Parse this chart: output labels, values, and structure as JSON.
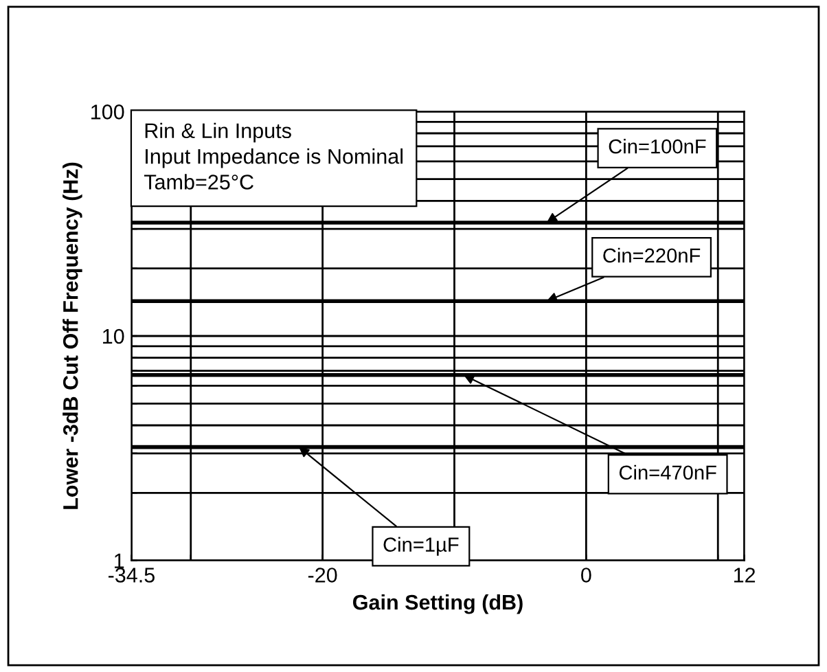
{
  "chart_data": {
    "type": "line",
    "xlabel": "Gain Setting (dB)",
    "ylabel": "Lower -3dB Cut Off Frequency (Hz)",
    "log": "y",
    "xlim": [
      -34.5,
      12
    ],
    "ylim": [
      1,
      100
    ],
    "xticks": [
      -34.5,
      {
        "value": -30,
        "label": null
      },
      -20,
      {
        "value": -10,
        "label": null
      },
      0,
      {
        "value": 10,
        "label": null
      },
      12
    ],
    "yticks": [
      1,
      {
        "value": 2,
        "label": null
      },
      {
        "value": 3,
        "label": null
      },
      {
        "value": 4,
        "label": null
      },
      {
        "value": 5,
        "label": null
      },
      {
        "value": 6,
        "label": null
      },
      {
        "value": 7,
        "label": null
      },
      {
        "value": 8,
        "label": null
      },
      {
        "value": 9,
        "label": null
      },
      10,
      {
        "value": 20,
        "label": null
      },
      {
        "value": 30,
        "label": null
      },
      {
        "value": 40,
        "label": null
      },
      {
        "value": 50,
        "label": null
      },
      {
        "value": 60,
        "label": null
      },
      {
        "value": 70,
        "label": null
      },
      {
        "value": 80,
        "label": null
      },
      {
        "value": 90,
        "label": null
      },
      100
    ],
    "grid": true,
    "line_style": "solid",
    "marker": "none",
    "x": [
      -34.5,
      12
    ],
    "series": [
      {
        "color": "#000000",
        "values": [
          32,
          32
        ]
      },
      {
        "color": "#000000",
        "values": [
          14.3,
          14.3
        ]
      },
      {
        "color": "#000000",
        "values": [
          6.7,
          6.7
        ]
      },
      {
        "color": "#000000",
        "values": [
          3.2,
          3.2
        ]
      }
    ],
    "annotations": [
      "Rin & Lin Inputs\nInput Impedance is Nominal\nTamb=25°C",
      {
        "text": "Cin=100nF",
        "x": -3,
        "y": 32
      },
      {
        "text": "Cin=220nF",
        "x": -3,
        "y": 14.3
      },
      {
        "text": "Cin=470nF",
        "x": -9.3,
        "y": 6.7
      },
      {
        "text": "Cin=1µF",
        "x": -21.8,
        "y": 3.2
      }
    ]
  }
}
